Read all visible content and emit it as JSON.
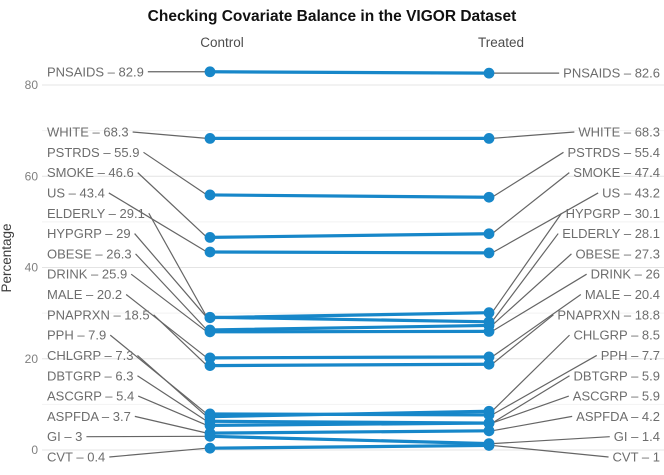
{
  "chart_data": {
    "type": "line",
    "subtype": "slopegraph",
    "title": "Checking Covariate Balance in the VIGOR Dataset",
    "ylabel": "Percentage",
    "xlabel": "",
    "ylim": [
      0,
      80
    ],
    "yticks": [
      0,
      20,
      40,
      60,
      80
    ],
    "yticks_minor": [
      10,
      30,
      50,
      70
    ],
    "grid": "horizontal major and minor, light gray, no axis lines",
    "legend_position": "none",
    "groups": {
      "control": "Control",
      "treated": "Treated"
    },
    "label_separator": " – ",
    "series": [
      {
        "name": "PNSAIDS",
        "control": 82.9,
        "treated": 82.6
      },
      {
        "name": "WHITE",
        "control": 68.3,
        "treated": 68.3
      },
      {
        "name": "PSTRDS",
        "control": 55.9,
        "treated": 55.4
      },
      {
        "name": "SMOKE",
        "control": 46.6,
        "treated": 47.4
      },
      {
        "name": "US",
        "control": 43.4,
        "treated": 43.2
      },
      {
        "name": "ELDERLY",
        "control": 29.1,
        "treated": 28.1
      },
      {
        "name": "HYPGRP",
        "control": 29,
        "treated": 30.1
      },
      {
        "name": "OBESE",
        "control": 26.3,
        "treated": 27.3
      },
      {
        "name": "DRINK",
        "control": 25.9,
        "treated": 26
      },
      {
        "name": "MALE",
        "control": 20.2,
        "treated": 20.4
      },
      {
        "name": "PNAPRXN",
        "control": 18.5,
        "treated": 18.8
      },
      {
        "name": "PPH",
        "control": 7.9,
        "treated": 7.7
      },
      {
        "name": "CHLGRP",
        "control": 7.3,
        "treated": 8.5
      },
      {
        "name": "DBTGRP",
        "control": 6.3,
        "treated": 5.9
      },
      {
        "name": "ASCGRP",
        "control": 5.4,
        "treated": 5.9
      },
      {
        "name": "ASPFDA",
        "control": 3.7,
        "treated": 4.2
      },
      {
        "name": "GI",
        "control": 3,
        "treated": 1.4
      },
      {
        "name": "CVT",
        "control": 0.4,
        "treated": 1
      }
    ],
    "colors": {
      "line": "#1787c9",
      "point": "#1787c9",
      "leader": "#656565",
      "label_text": "#6d6d6d",
      "tick_text": "#808080",
      "grid_major": "#e4e4e4",
      "grid_minor": "#f2f2f2",
      "header_text": "#4d4d4d",
      "title_text": "#111111",
      "ylabel_text": "#3d3d3d",
      "background": "#ffffff"
    }
  }
}
